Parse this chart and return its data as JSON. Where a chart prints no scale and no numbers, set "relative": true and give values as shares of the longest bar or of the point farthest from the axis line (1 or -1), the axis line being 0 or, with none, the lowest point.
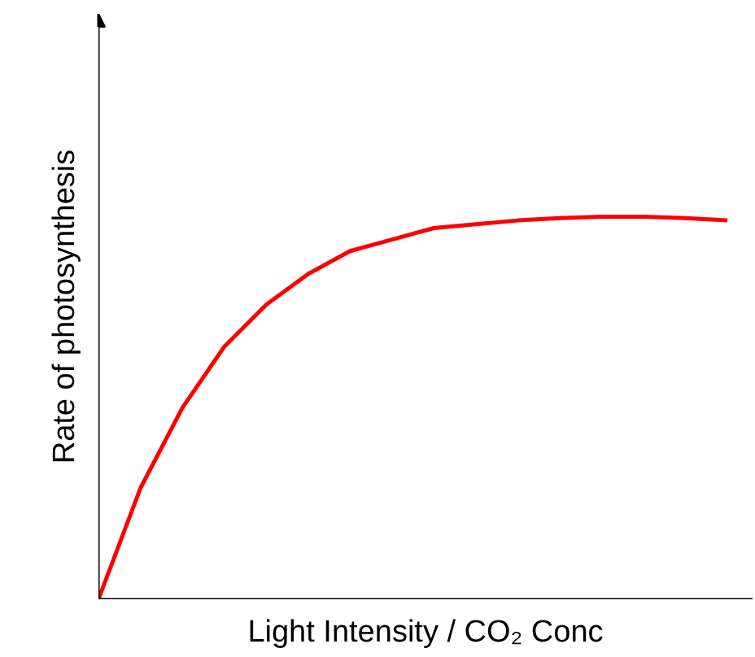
{
  "chart_data": {
    "type": "line",
    "relative": true,
    "xlabel": "Light Intensity / CO₂ Conc",
    "ylabel": "Rate of photosynthesis",
    "categories": [
      null,
      null,
      null,
      null,
      null,
      null,
      null,
      null,
      null,
      null,
      null,
      null,
      null,
      null,
      null,
      null
    ],
    "series": [
      {
        "color": "#ff0000",
        "values": [
          0,
          0.29,
          0.5,
          0.66,
          0.77,
          0.85,
          0.91,
          0.94,
          0.97,
          0.98,
          0.99,
          0.996,
          1,
          1,
          0.996,
          0.99
        ]
      }
    ],
    "grid": false,
    "marker": "none",
    "line_style": "solid"
  }
}
